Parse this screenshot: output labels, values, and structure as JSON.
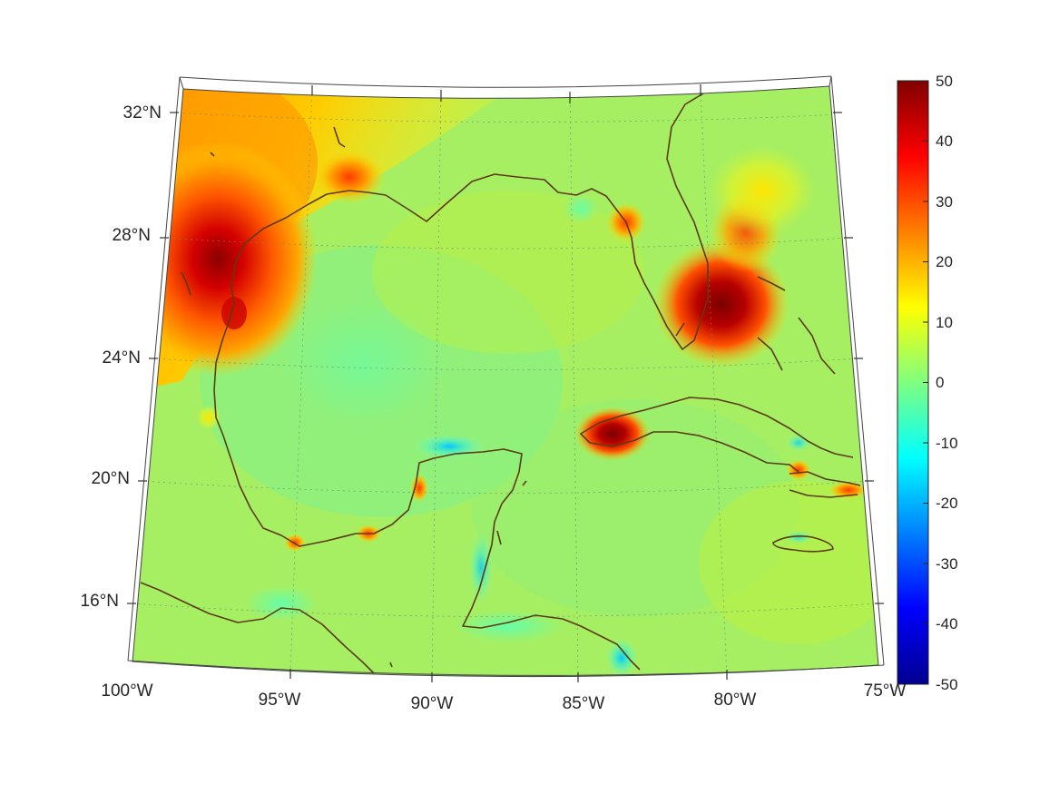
{
  "map": {
    "projection": "conic (curved parallels, converging meridians)",
    "lon_range": [
      -100,
      -75
    ],
    "lat_range": [
      14,
      33
    ],
    "lat_labels": [
      "32°N",
      "28°N",
      "24°N",
      "20°N",
      "16°N"
    ],
    "lon_labels": [
      "100°W",
      "95°W",
      "90°W",
      "85°W",
      "80°W",
      "75°W"
    ],
    "grid": "dotted",
    "coastline_color": "#5c3a12"
  },
  "colorbar": {
    "colormap": "jet",
    "range": [
      -50,
      50
    ],
    "tick_labels": [
      "50",
      "40",
      "30",
      "20",
      "10",
      "0",
      "-10",
      "-20",
      "-30",
      "-40",
      "-50"
    ]
  },
  "colors": {
    "background_field": "#a8f06a",
    "high": "#8b0000",
    "low": "#00008b"
  }
}
